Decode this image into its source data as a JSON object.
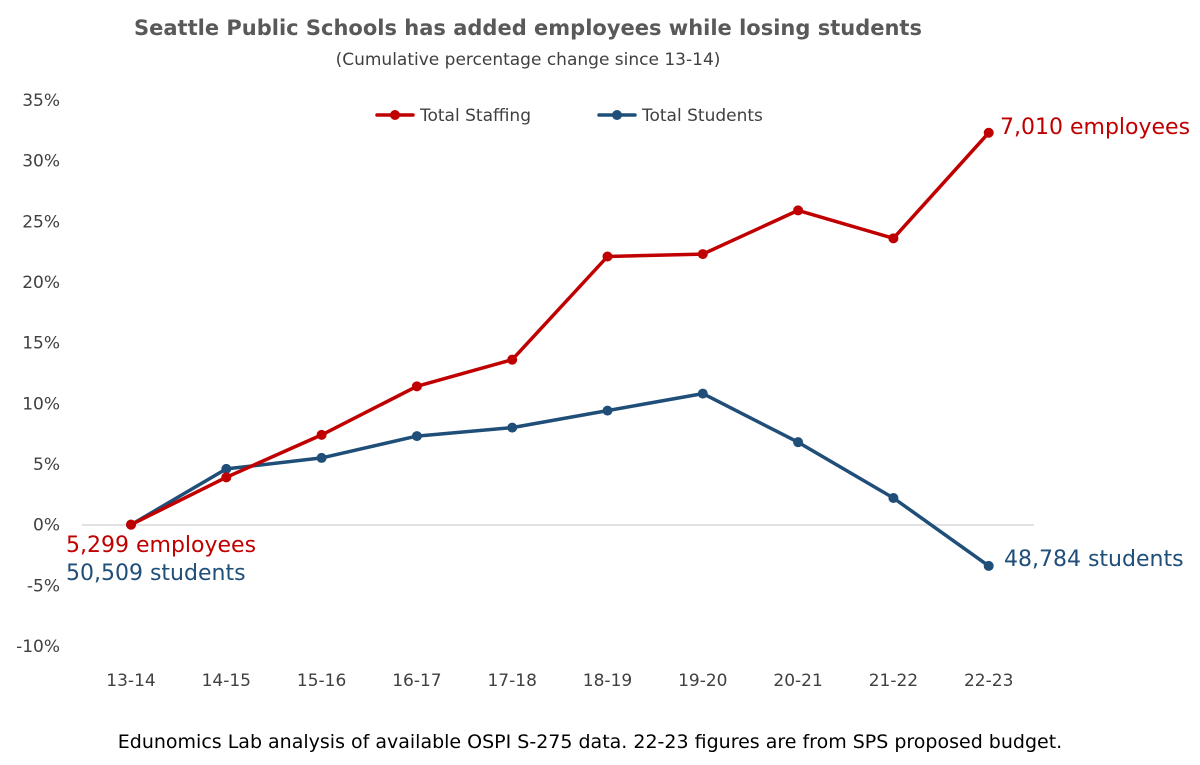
{
  "chart_data": {
    "type": "line",
    "title": "Seattle Public Schools has added employees while losing students",
    "subtitle": "(Cumulative percentage change since 13-14)",
    "xlabel": "",
    "ylabel": "",
    "categories": [
      "13-14",
      "14-15",
      "15-16",
      "16-17",
      "17-18",
      "18-19",
      "19-20",
      "20-21",
      "21-22",
      "22-23"
    ],
    "ylim": [
      -10,
      35
    ],
    "yticks": [
      35,
      30,
      25,
      20,
      15,
      10,
      5,
      0,
      -5,
      -10
    ],
    "ytick_labels": [
      "35%",
      "30%",
      "25%",
      "20%",
      "15%",
      "10%",
      "5%",
      "0%",
      "-5%",
      "-10%"
    ],
    "legend_position": "top-center",
    "series": [
      {
        "name": "Total Staffing",
        "color": "#C00000",
        "values": [
          0,
          3.9,
          7.4,
          11.4,
          13.6,
          22.1,
          22.3,
          25.9,
          23.6,
          32.3
        ]
      },
      {
        "name": "Total Students",
        "color": "#1F4E79",
        "values": [
          0,
          4.6,
          5.5,
          7.3,
          8.0,
          9.4,
          10.8,
          6.8,
          2.2,
          -3.4
        ]
      }
    ],
    "annotations": {
      "start_employees": {
        "text": "5,299 employees",
        "color": "#C00000"
      },
      "start_students": {
        "text": "50,509 students",
        "color": "#1F4E79"
      },
      "end_employees": {
        "text": "7,010 employees",
        "color": "#C00000"
      },
      "end_students": {
        "text": "48,784 students",
        "color": "#1F4E79"
      }
    }
  },
  "footnote": "Edunomics Lab analysis of available OSPI S-275 data. 22-23 figures are from SPS proposed budget."
}
